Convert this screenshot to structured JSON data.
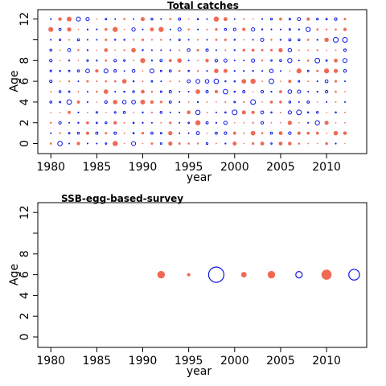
{
  "colors": {
    "positive": "#ef6a55",
    "negative": "#0b16e0",
    "frame": "#000000"
  },
  "chart_data": [
    {
      "type": "scatter",
      "subtype": "bubble-residuals",
      "title": "Total catches",
      "xlabel": "year",
      "ylabel": "Age",
      "xlim": [
        1978.5,
        1214
      ],
      "xticks": [
        1980,
        1985,
        1990,
        1995,
        2000,
        2005,
        2010
      ],
      "yticks": [
        0,
        2,
        4,
        6,
        8,
        12
      ],
      "years": [
        1980,
        2012
      ],
      "ages": [
        0,
        12
      ],
      "note": "dense grid of small residual bubbles, one per year and age; red = positive, blue = negative"
    },
    {
      "type": "scatter",
      "subtype": "bubble-residuals",
      "title": "SSB-egg-based-survey",
      "xlabel": "year",
      "ylabel": "Age",
      "xticks": [
        1980,
        1985,
        1990,
        1995,
        2000,
        2005,
        2010
      ],
      "yticks": [
        0,
        2,
        4,
        6,
        8,
        12
      ],
      "points": [
        {
          "year": 1992,
          "age": 6,
          "size": 0.45,
          "sign": "positive"
        },
        {
          "year": 1995,
          "age": 6,
          "size": 0.18,
          "sign": "positive"
        },
        {
          "year": 1998,
          "age": 6,
          "size": 1.0,
          "sign": "negative"
        },
        {
          "year": 2001,
          "age": 6,
          "size": 0.32,
          "sign": "positive"
        },
        {
          "year": 2004,
          "age": 6,
          "size": 0.45,
          "sign": "positive"
        },
        {
          "year": 2007,
          "age": 6,
          "size": 0.42,
          "sign": "negative"
        },
        {
          "year": 2010,
          "age": 6,
          "size": 0.62,
          "sign": "positive"
        },
        {
          "year": 2013,
          "age": 6,
          "size": 0.7,
          "sign": "negative"
        }
      ]
    }
  ]
}
